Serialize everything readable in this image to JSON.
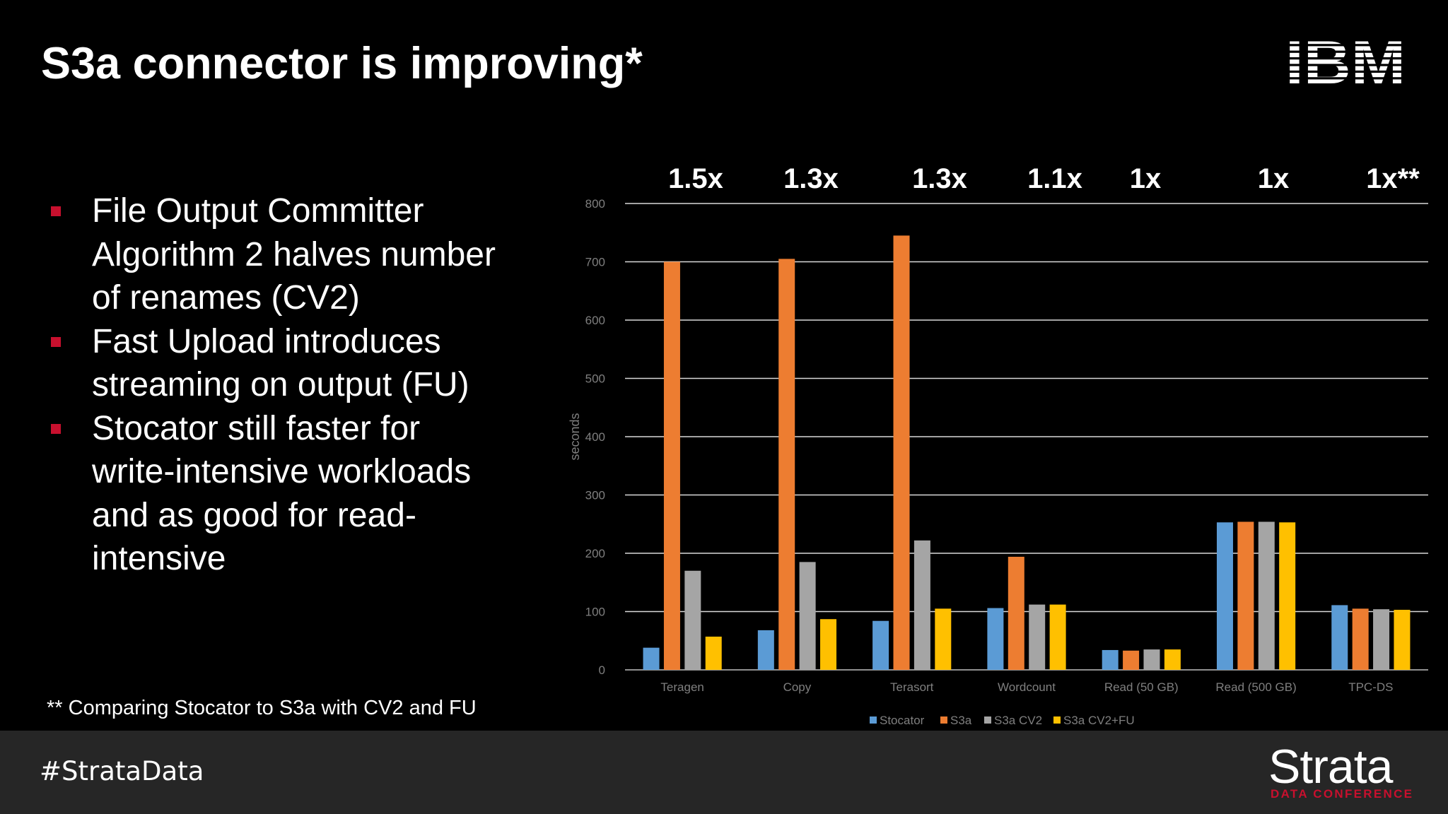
{
  "slide": {
    "title": "S3a connector is improving*",
    "bullets": [
      "File Output Committer Algorithm 2 halves number of renames (CV2)",
      "Fast Upload introduces streaming on output (FU)",
      "Stocator still faster for write-intensive workloads and as good for read-intensive"
    ],
    "footnote": "** Comparing Stocator to S3a with CV2 and FU",
    "logo": "IBM",
    "footer": {
      "hashtag": "#StrataData",
      "brand": "Strata",
      "brand_sub": "DATA CONFERENCE"
    }
  },
  "chart_data": {
    "type": "bar",
    "categories": [
      "Teragen",
      "Copy",
      "Terasort",
      "Wordcount",
      "Read (50 GB)",
      "Read (500 GB)",
      "TPC-DS"
    ],
    "series": [
      {
        "name": "Stocator",
        "color": "#5b9bd5",
        "values": [
          38,
          68,
          84,
          106,
          34,
          253,
          111
        ]
      },
      {
        "name": "S3a",
        "color": "#ed7d31",
        "values": [
          700,
          705,
          745,
          194,
          33,
          254,
          105
        ]
      },
      {
        "name": "S3a CV2",
        "color": "#a5a5a5",
        "values": [
          170,
          185,
          222,
          112,
          35,
          254,
          104
        ]
      },
      {
        "name": "S3a CV2+FU",
        "color": "#ffc000",
        "values": [
          57,
          87,
          105,
          112,
          35,
          253,
          103
        ]
      }
    ],
    "annotations": [
      "1.5x",
      "1.3x",
      "1.3x",
      "1.1x",
      "1x",
      "1x",
      "1x**"
    ],
    "ylabel": "seconds",
    "ylim": [
      0,
      800
    ],
    "yticks": [
      0,
      100,
      200,
      300,
      400,
      500,
      600,
      700,
      800
    ],
    "grid": true,
    "legend": "bottom"
  }
}
